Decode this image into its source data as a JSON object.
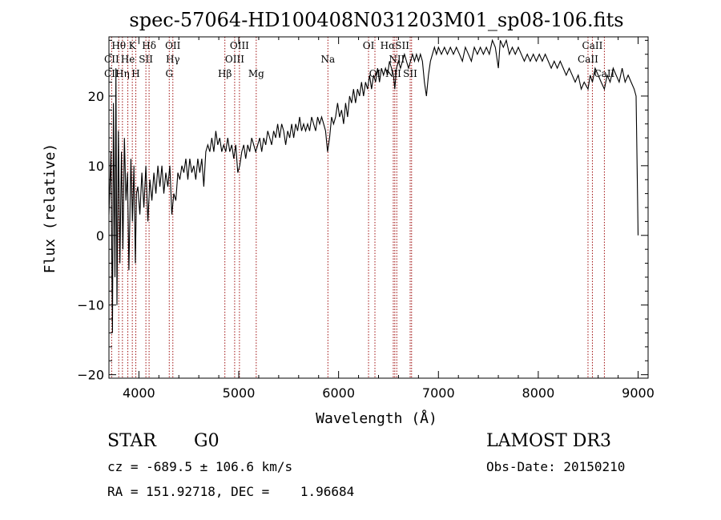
{
  "chart_data": {
    "type": "line",
    "title": "spec-57064-HD100408N031203M01_sp08-106.fits",
    "xlabel": "Wavelength (Å)",
    "ylabel": "Flux (relative)",
    "xlim": [
      3700,
      9100
    ],
    "ylim": [
      -20.5,
      28.5
    ],
    "x_ticks": [
      4000,
      5000,
      6000,
      7000,
      8000,
      9000
    ],
    "y_ticks": [
      -20,
      -10,
      0,
      10,
      20
    ],
    "line_color": "#000000",
    "marker_line_color": "#a01010",
    "series": [
      {
        "points": [
          [
            3700,
            3
          ],
          [
            3720,
            12
          ],
          [
            3735,
            -14
          ],
          [
            3745,
            19
          ],
          [
            3760,
            -6
          ],
          [
            3770,
            24
          ],
          [
            3780,
            -10
          ],
          [
            3795,
            15
          ],
          [
            3810,
            -4
          ],
          [
            3825,
            12
          ],
          [
            3840,
            -2
          ],
          [
            3855,
            14
          ],
          [
            3870,
            5
          ],
          [
            3885,
            9
          ],
          [
            3900,
            -5
          ],
          [
            3920,
            11
          ],
          [
            3935,
            2
          ],
          [
            3950,
            10
          ],
          [
            3965,
            -4
          ],
          [
            3975,
            6
          ],
          [
            3990,
            7
          ],
          [
            4010,
            3
          ],
          [
            4030,
            9
          ],
          [
            4050,
            4
          ],
          [
            4070,
            10
          ],
          [
            4090,
            2
          ],
          [
            4110,
            8
          ],
          [
            4130,
            5
          ],
          [
            4150,
            9
          ],
          [
            4170,
            6
          ],
          [
            4190,
            10
          ],
          [
            4210,
            7
          ],
          [
            4230,
            10
          ],
          [
            4250,
            6
          ],
          [
            4270,
            9
          ],
          [
            4290,
            7
          ],
          [
            4310,
            10
          ],
          [
            4330,
            3
          ],
          [
            4350,
            6
          ],
          [
            4370,
            5
          ],
          [
            4390,
            9
          ],
          [
            4410,
            8
          ],
          [
            4430,
            10
          ],
          [
            4450,
            9
          ],
          [
            4470,
            11
          ],
          [
            4490,
            8
          ],
          [
            4510,
            11
          ],
          [
            4530,
            9
          ],
          [
            4550,
            10
          ],
          [
            4570,
            8
          ],
          [
            4590,
            11
          ],
          [
            4610,
            9
          ],
          [
            4630,
            11
          ],
          [
            4650,
            7
          ],
          [
            4670,
            12
          ],
          [
            4690,
            13
          ],
          [
            4710,
            12
          ],
          [
            4730,
            14
          ],
          [
            4750,
            12
          ],
          [
            4770,
            15
          ],
          [
            4790,
            13
          ],
          [
            4810,
            14
          ],
          [
            4830,
            12
          ],
          [
            4850,
            13
          ],
          [
            4870,
            12
          ],
          [
            4890,
            14
          ],
          [
            4910,
            12
          ],
          [
            4930,
            13
          ],
          [
            4950,
            11
          ],
          [
            4970,
            13
          ],
          [
            4990,
            9
          ],
          [
            5010,
            10
          ],
          [
            5030,
            12
          ],
          [
            5050,
            13
          ],
          [
            5070,
            11
          ],
          [
            5090,
            13
          ],
          [
            5110,
            12
          ],
          [
            5130,
            14
          ],
          [
            5150,
            13
          ],
          [
            5170,
            12
          ],
          [
            5190,
            13
          ],
          [
            5210,
            14
          ],
          [
            5230,
            12
          ],
          [
            5250,
            14
          ],
          [
            5270,
            13
          ],
          [
            5290,
            15
          ],
          [
            5310,
            14
          ],
          [
            5330,
            13
          ],
          [
            5350,
            15
          ],
          [
            5370,
            14
          ],
          [
            5390,
            16
          ],
          [
            5410,
            14
          ],
          [
            5430,
            16
          ],
          [
            5450,
            15
          ],
          [
            5470,
            13
          ],
          [
            5490,
            15
          ],
          [
            5510,
            14
          ],
          [
            5530,
            16
          ],
          [
            5550,
            14
          ],
          [
            5570,
            16
          ],
          [
            5590,
            15
          ],
          [
            5610,
            17
          ],
          [
            5630,
            15
          ],
          [
            5650,
            16
          ],
          [
            5670,
            15
          ],
          [
            5690,
            16
          ],
          [
            5710,
            15
          ],
          [
            5730,
            17
          ],
          [
            5750,
            16
          ],
          [
            5770,
            15
          ],
          [
            5790,
            17
          ],
          [
            5810,
            16
          ],
          [
            5830,
            17
          ],
          [
            5850,
            16
          ],
          [
            5870,
            15
          ],
          [
            5890,
            12
          ],
          [
            5910,
            14
          ],
          [
            5930,
            17
          ],
          [
            5950,
            16
          ],
          [
            5970,
            17
          ],
          [
            5990,
            19
          ],
          [
            6010,
            17
          ],
          [
            6030,
            18
          ],
          [
            6050,
            16
          ],
          [
            6070,
            19
          ],
          [
            6090,
            17
          ],
          [
            6110,
            20
          ],
          [
            6130,
            19
          ],
          [
            6150,
            21
          ],
          [
            6170,
            19
          ],
          [
            6190,
            21
          ],
          [
            6210,
            20
          ],
          [
            6230,
            22
          ],
          [
            6250,
            20
          ],
          [
            6270,
            22
          ],
          [
            6290,
            21
          ],
          [
            6310,
            23
          ],
          [
            6330,
            21
          ],
          [
            6350,
            23
          ],
          [
            6370,
            22
          ],
          [
            6390,
            24
          ],
          [
            6410,
            22
          ],
          [
            6430,
            24
          ],
          [
            6450,
            23
          ],
          [
            6470,
            24
          ],
          [
            6490,
            23
          ],
          [
            6510,
            25
          ],
          [
            6530,
            24
          ],
          [
            6550,
            23
          ],
          [
            6563,
            21
          ],
          [
            6580,
            24
          ],
          [
            6600,
            25
          ],
          [
            6620,
            24
          ],
          [
            6640,
            25
          ],
          [
            6660,
            26
          ],
          [
            6680,
            25
          ],
          [
            6700,
            24
          ],
          [
            6720,
            25
          ],
          [
            6740,
            26
          ],
          [
            6760,
            25
          ],
          [
            6780,
            26
          ],
          [
            6800,
            25
          ],
          [
            6820,
            26
          ],
          [
            6840,
            25
          ],
          [
            6860,
            22
          ],
          [
            6880,
            20
          ],
          [
            6900,
            23
          ],
          [
            6920,
            25
          ],
          [
            6940,
            26
          ],
          [
            6960,
            27
          ],
          [
            6980,
            26
          ],
          [
            7000,
            27
          ],
          [
            7030,
            26
          ],
          [
            7060,
            27
          ],
          [
            7090,
            26
          ],
          [
            7120,
            27
          ],
          [
            7150,
            26
          ],
          [
            7180,
            27
          ],
          [
            7210,
            26
          ],
          [
            7240,
            25
          ],
          [
            7270,
            27
          ],
          [
            7300,
            26
          ],
          [
            7330,
            25
          ],
          [
            7360,
            27
          ],
          [
            7390,
            26
          ],
          [
            7420,
            27
          ],
          [
            7450,
            26
          ],
          [
            7480,
            27
          ],
          [
            7510,
            26
          ],
          [
            7540,
            28
          ],
          [
            7570,
            27
          ],
          [
            7600,
            24
          ],
          [
            7620,
            28
          ],
          [
            7650,
            27
          ],
          [
            7680,
            28
          ],
          [
            7710,
            26
          ],
          [
            7740,
            27
          ],
          [
            7770,
            26
          ],
          [
            7800,
            27
          ],
          [
            7830,
            26
          ],
          [
            7860,
            25
          ],
          [
            7890,
            26
          ],
          [
            7920,
            25
          ],
          [
            7950,
            26
          ],
          [
            7980,
            25
          ],
          [
            8010,
            26
          ],
          [
            8040,
            25
          ],
          [
            8070,
            26
          ],
          [
            8100,
            25
          ],
          [
            8130,
            24
          ],
          [
            8160,
            25
          ],
          [
            8190,
            24
          ],
          [
            8220,
            25
          ],
          [
            8250,
            24
          ],
          [
            8280,
            23
          ],
          [
            8310,
            24
          ],
          [
            8340,
            23
          ],
          [
            8370,
            22
          ],
          [
            8400,
            23
          ],
          [
            8430,
            21
          ],
          [
            8460,
            22
          ],
          [
            8498,
            21
          ],
          [
            8520,
            23
          ],
          [
            8542,
            22
          ],
          [
            8570,
            24
          ],
          [
            8600,
            23
          ],
          [
            8630,
            22
          ],
          [
            8662,
            21
          ],
          [
            8690,
            23
          ],
          [
            8720,
            22
          ],
          [
            8750,
            24
          ],
          [
            8780,
            23
          ],
          [
            8810,
            22
          ],
          [
            8840,
            24
          ],
          [
            8870,
            22
          ],
          [
            8900,
            23
          ],
          [
            8930,
            22
          ],
          [
            8960,
            21
          ],
          [
            8980,
            20
          ],
          [
            8995,
            5
          ],
          [
            9000,
            0
          ]
        ]
      }
    ],
    "line_markers": [
      {
        "label": "Hθ",
        "x": 3798,
        "row": 1
      },
      {
        "label": "K",
        "x": 3934,
        "row": 1
      },
      {
        "label": "Hδ",
        "x": 4102,
        "row": 1
      },
      {
        "label": "OII",
        "x": 4340,
        "row": 1
      },
      {
        "label": "OIII",
        "x": 5007,
        "row": 1
      },
      {
        "label": "OI",
        "x": 6300,
        "row": 1
      },
      {
        "label": "HαSII",
        "x": 6563,
        "row": 1
      },
      {
        "label": "CaII",
        "x": 8542,
        "row": 1
      },
      {
        "label": "CII",
        "x": 3727,
        "row": 2
      },
      {
        "label": "He",
        "x": 3889,
        "row": 2
      },
      {
        "label": "SII",
        "x": 4070,
        "row": 2
      },
      {
        "label": "Hγ",
        "x": 4340,
        "row": 2
      },
      {
        "label": "OIII",
        "x": 4959,
        "row": 2
      },
      {
        "label": "Na",
        "x": 5893,
        "row": 2
      },
      {
        "label": "NII",
        "x": 6583,
        "row": 2
      },
      {
        "label": "CaII",
        "x": 8498,
        "row": 2
      },
      {
        "label": "CII",
        "x": 3727,
        "row": 3
      },
      {
        "label": "Hη",
        "x": 3835,
        "row": 3
      },
      {
        "label": "H",
        "x": 3969,
        "row": 3
      },
      {
        "label": "G",
        "x": 4304,
        "row": 3
      },
      {
        "label": "Hβ",
        "x": 4861,
        "row": 3
      },
      {
        "label": "Mg",
        "x": 5175,
        "row": 3
      },
      {
        "label": "OI",
        "x": 6364,
        "row": 3
      },
      {
        "label": "NII",
        "x": 6548,
        "row": 3
      },
      {
        "label": "SII",
        "x": 6717,
        "row": 3
      },
      {
        "label": "CaII",
        "x": 8662,
        "row": 3
      }
    ],
    "line_marker_x": [
      3727,
      3798,
      3835,
      3889,
      3934,
      3969,
      4070,
      4102,
      4304,
      4340,
      4861,
      4959,
      5007,
      5175,
      5893,
      6300,
      6364,
      6548,
      6563,
      6583,
      6717,
      6731,
      8498,
      8542,
      8662
    ]
  },
  "info": {
    "object_class": "STAR",
    "subclass": "G0",
    "survey": "LAMOST DR3",
    "cz_line": "cz = -689.5 ± 106.6 km/s",
    "obs_date_line": "Obs-Date: 20150210",
    "radec_line": "RA = 151.92718, DEC =    1.96684"
  }
}
